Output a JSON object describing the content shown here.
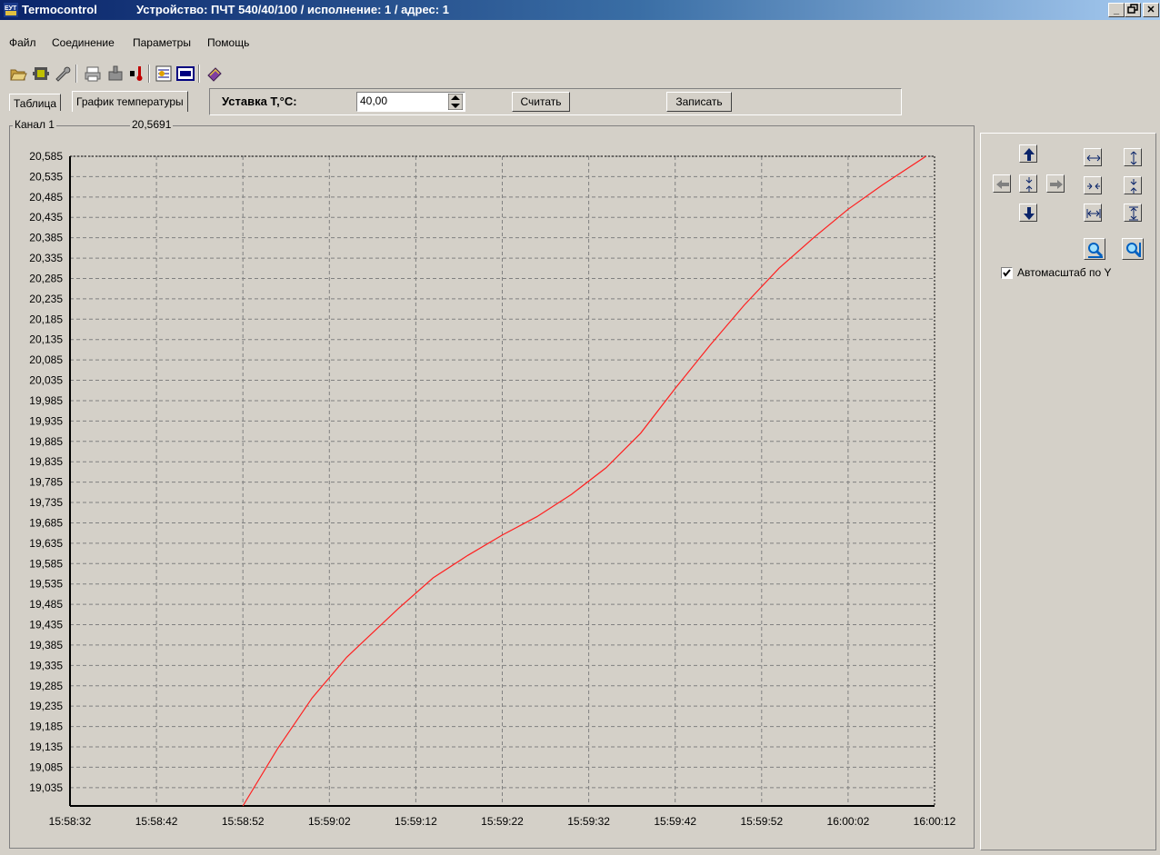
{
  "window": {
    "app_name": "Termocontrol",
    "device_info": "Устройство: ПЧТ 540/40/100 / исполнение: 1 / адрес: 1",
    "minimize": "_",
    "maximize": "🗗",
    "close": "✕"
  },
  "menu": [
    "Файл",
    "Соединение",
    "Параметры",
    "Помощь"
  ],
  "toolbar_icons": [
    "open-folder-icon",
    "save-device-icon",
    "wrench-icon",
    "print-icon",
    "device-read-icon",
    "thermometer-icon",
    "chart-settings-icon",
    "display-icon",
    "book-icon"
  ],
  "tabs": [
    {
      "label": "Таблица",
      "active": false
    },
    {
      "label": "График температуры",
      "active": true
    }
  ],
  "setpoint": {
    "label": "Уставка Т,°С:",
    "value": "40,00",
    "read_button": "Считать",
    "write_button": "Записать"
  },
  "channel": {
    "label": "Канал 1",
    "current_value": "20,5691"
  },
  "right_panel": {
    "autoscale_label": "Автомасштаб по Y",
    "autoscale_checked": true
  },
  "colors": {
    "line": "#ff2020",
    "plot_bg": "#d4d0c8",
    "grid": "#808080",
    "accent_blue": "#0a246a"
  },
  "chart_data": {
    "type": "line",
    "title": "",
    "xlabel": "",
    "ylabel": "",
    "x_ticks": [
      "15:58:32",
      "15:58:42",
      "15:58:52",
      "15:59:02",
      "15:59:12",
      "15:59:22",
      "15:59:32",
      "15:59:42",
      "15:59:52",
      "16:00:02",
      "16:00:12"
    ],
    "y_ticks": [
      "20,585",
      "20,535",
      "20,485",
      "20,435",
      "20,385",
      "20,335",
      "20,285",
      "20,235",
      "20,185",
      "20,135",
      "20,085",
      "20,035",
      "19,985",
      "19,935",
      "19,885",
      "19,835",
      "19,785",
      "19,735",
      "19,685",
      "19,635",
      "19,585",
      "19,535",
      "19,485",
      "19,435",
      "19,385",
      "19,335",
      "19,285",
      "19,235",
      "19,185",
      "19,135",
      "19,085",
      "19,035"
    ],
    "ylim": [
      18.99,
      20.585
    ],
    "xlim_seconds": [
      0,
      100
    ],
    "grid": true,
    "series": [
      {
        "x": [
          "15:58:52",
          "15:58:56",
          "15:59:00",
          "15:59:04",
          "15:59:06",
          "15:59:10",
          "15:59:14",
          "15:59:18",
          "15:59:22",
          "15:59:26",
          "15:59:30",
          "15:59:34",
          "15:59:38",
          "15:59:42",
          "15:59:46",
          "15:59:50",
          "15:59:54",
          "15:59:58",
          "16:00:02",
          "16:00:06",
          "16:00:11"
        ],
        "values": [
          18.99,
          19.13,
          19.255,
          19.355,
          19.395,
          19.475,
          19.55,
          19.605,
          19.655,
          19.7,
          19.755,
          19.82,
          19.905,
          20.015,
          20.12,
          20.22,
          20.31,
          20.385,
          20.455,
          20.515,
          20.585
        ]
      }
    ]
  }
}
